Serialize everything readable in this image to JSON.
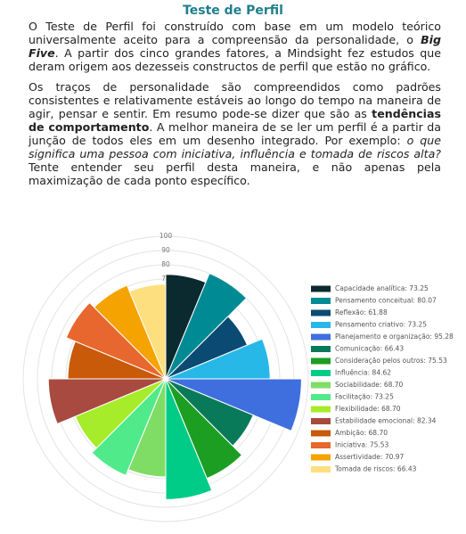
{
  "document": {
    "title": "Teste de Perfil",
    "paragraphs": [
      [
        "O Teste de Perfil foi construído com base em um modelo teórico universalmente aceito para a compreensão da personalidade, o ",
        "Big Five",
        ". A partir dos cinco grandes fatores, a Mindsight fez estudos que deram origem aos dezesseis constructos de perfil que estão no gráfico."
      ],
      [
        "Os traços de personalidade são compreendidos como padrões consistentes e relativamente estáveis ao longo do tempo na maneira de agir, pensar e sentir. Em resumo pode-se dizer que são as ",
        "tendências de comportamento",
        ". A melhor maneira de se ler um perfil é a partir da junção de todos eles em um desenho integrado. Por exemplo: ",
        "o que significa uma pessoa com iniciativa, influência e tomada de riscos alta?",
        " Tente entender seu perfil desta maneira, e não apenas pela maximização de cada ponto específico."
      ]
    ]
  },
  "chart_data": {
    "type": "polar-area",
    "categories": [
      "Capacidade analítica",
      "Pensamento conceitual",
      "Reflexão",
      "Pensamento criativo",
      "Planejamento e organização",
      "Comunicação",
      "Consideração pelos outros",
      "Influência",
      "Sociabilidade",
      "Facilitação",
      "Flexibilidade",
      "Estabilidade emocional",
      "Ambição",
      "Iniciativa",
      "Assertividade",
      "Tomada de riscos"
    ],
    "values": [
      73.25,
      80.07,
      61.88,
      73.25,
      95.28,
      66.43,
      75.53,
      84.62,
      68.7,
      73.25,
      68.7,
      82.34,
      68.7,
      75.53,
      70.97,
      66.43
    ],
    "value_labels": [
      "73.25",
      "80.07",
      "61.88",
      "73.25",
      "95.28",
      "66.43",
      "75.53",
      "84.62",
      "68.70",
      "73.25",
      "68.70",
      "82.34",
      "68.70",
      "75.53",
      "70.97",
      "66.43"
    ],
    "colors": [
      "#0b2a2f",
      "#008b94",
      "#0a4a73",
      "#27b8e8",
      "#3f6fdf",
      "#087a5a",
      "#1c9e22",
      "#00cc88",
      "#7fdd66",
      "#50ea8a",
      "#a7ec2a",
      "#a84a3f",
      "#c85a0a",
      "#e8672e",
      "#f5a300",
      "#fddf7f"
    ],
    "ylim": [
      0,
      100
    ],
    "yticks": [
      10,
      20,
      30,
      40,
      50,
      60,
      70,
      80,
      90,
      100
    ],
    "grid": true,
    "legend": "right"
  }
}
